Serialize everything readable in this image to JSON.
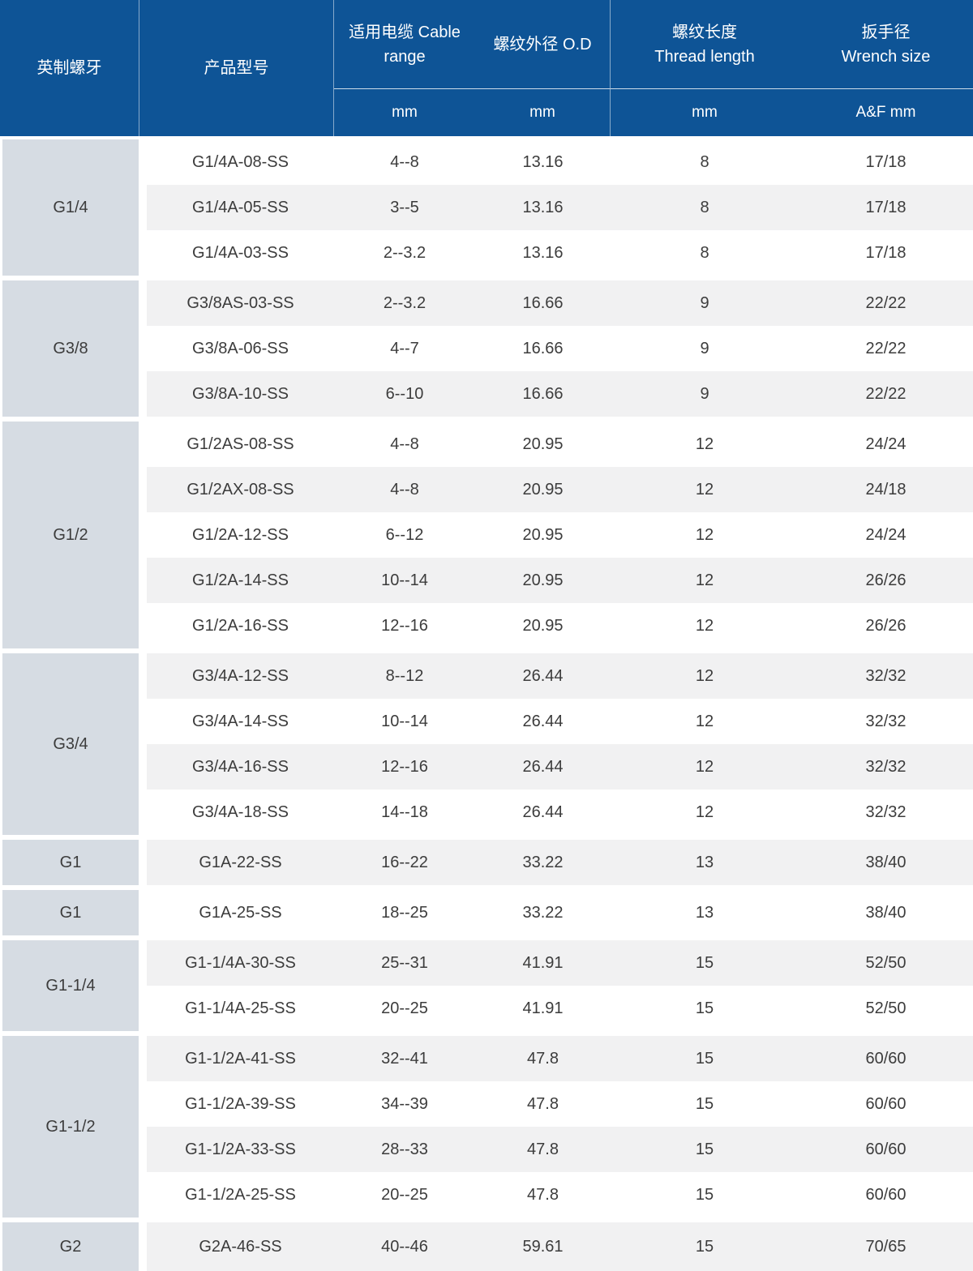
{
  "table": {
    "header": {
      "thread_label": "英制螺牙",
      "model_label": "产品型号",
      "cable_line1": "适用电缆 Cable",
      "cable_line2": "range",
      "od_label": "螺纹外径 O.D",
      "thread_length_line1": "螺纹长度",
      "thread_length_line2": "Thread length",
      "wrench_line1": "扳手径",
      "wrench_line2": "Wrench size",
      "cable_unit": "mm",
      "od_unit": "mm",
      "thread_length_unit": "mm",
      "wrench_unit": "A&F mm"
    },
    "groups": [
      {
        "thread_size": "G1/4",
        "rows": [
          {
            "model": "G1/4A-08-SS",
            "cable_range": "4--8",
            "od": "13.16",
            "thread_length": "8",
            "wrench": "17/18"
          },
          {
            "model": "G1/4A-05-SS",
            "cable_range": "3--5",
            "od": "13.16",
            "thread_length": "8",
            "wrench": "17/18"
          },
          {
            "model": "G1/4A-03-SS",
            "cable_range": "2--3.2",
            "od": "13.16",
            "thread_length": "8",
            "wrench": "17/18"
          }
        ]
      },
      {
        "thread_size": "G3/8",
        "rows": [
          {
            "model": "G3/8AS-03-SS",
            "cable_range": "2--3.2",
            "od": "16.66",
            "thread_length": "9",
            "wrench": "22/22"
          },
          {
            "model": "G3/8A-06-SS",
            "cable_range": "4--7",
            "od": "16.66",
            "thread_length": "9",
            "wrench": "22/22"
          },
          {
            "model": "G3/8A-10-SS",
            "cable_range": "6--10",
            "od": "16.66",
            "thread_length": "9",
            "wrench": "22/22"
          }
        ]
      },
      {
        "thread_size": "G1/2",
        "rows": [
          {
            "model": "G1/2AS-08-SS",
            "cable_range": "4--8",
            "od": "20.95",
            "thread_length": "12",
            "wrench": "24/24"
          },
          {
            "model": "G1/2AX-08-SS",
            "cable_range": "4--8",
            "od": "20.95",
            "thread_length": "12",
            "wrench": "24/18"
          },
          {
            "model": "G1/2A-12-SS",
            "cable_range": "6--12",
            "od": "20.95",
            "thread_length": "12",
            "wrench": "24/24"
          },
          {
            "model": "G1/2A-14-SS",
            "cable_range": "10--14",
            "od": "20.95",
            "thread_length": "12",
            "wrench": "26/26"
          },
          {
            "model": "G1/2A-16-SS",
            "cable_range": "12--16",
            "od": "20.95",
            "thread_length": "12",
            "wrench": "26/26"
          }
        ]
      },
      {
        "thread_size": "G3/4",
        "rows": [
          {
            "model": "G3/4A-12-SS",
            "cable_range": "8--12",
            "od": "26.44",
            "thread_length": "12",
            "wrench": "32/32"
          },
          {
            "model": "G3/4A-14-SS",
            "cable_range": "10--14",
            "od": "26.44",
            "thread_length": "12",
            "wrench": "32/32"
          },
          {
            "model": "G3/4A-16-SS",
            "cable_range": "12--16",
            "od": "26.44",
            "thread_length": "12",
            "wrench": "32/32"
          },
          {
            "model": "G3/4A-18-SS",
            "cable_range": "14--18",
            "od": "26.44",
            "thread_length": "12",
            "wrench": "32/32"
          }
        ]
      },
      {
        "thread_size": "G1",
        "rows": [
          {
            "model": "G1A-22-SS",
            "cable_range": "16--22",
            "od": "33.22",
            "thread_length": "13",
            "wrench": "38/40"
          }
        ]
      },
      {
        "thread_size": "G1",
        "rows": [
          {
            "model": "G1A-25-SS",
            "cable_range": "18--25",
            "od": "33.22",
            "thread_length": "13",
            "wrench": "38/40"
          }
        ]
      },
      {
        "thread_size": "G1-1/4",
        "rows": [
          {
            "model": "G1-1/4A-30-SS",
            "cable_range": "25--31",
            "od": "41.91",
            "thread_length": "15",
            "wrench": "52/50"
          },
          {
            "model": "G1-1/4A-25-SS",
            "cable_range": "20--25",
            "od": "41.91",
            "thread_length": "15",
            "wrench": "52/50"
          }
        ]
      },
      {
        "thread_size": "G1-1/2",
        "rows": [
          {
            "model": "G1-1/2A-41-SS",
            "cable_range": "32--41",
            "od": "47.8",
            "thread_length": "15",
            "wrench": "60/60"
          },
          {
            "model": "G1-1/2A-39-SS",
            "cable_range": "34--39",
            "od": "47.8",
            "thread_length": "15",
            "wrench": "60/60"
          },
          {
            "model": "G1-1/2A-33-SS",
            "cable_range": "28--33",
            "od": "47.8",
            "thread_length": "15",
            "wrench": "60/60"
          },
          {
            "model": "G1-1/2A-25-SS",
            "cable_range": "20--25",
            "od": "47.8",
            "thread_length": "15",
            "wrench": "60/60"
          }
        ]
      },
      {
        "thread_size": "G2",
        "rows": [
          {
            "model": "G2A-46-SS",
            "cable_range": "40--46",
            "od": "59.61",
            "thread_length": "15",
            "wrench": "70/65"
          }
        ]
      }
    ],
    "colors": {
      "header_bg": "#0e5496",
      "header_text": "#ffffff",
      "group_cell_bg": "#d6dce3",
      "row_bg": "#ffffff",
      "row_alt_bg": "#f1f1f2",
      "data_text": "#3c3c3c"
    }
  }
}
